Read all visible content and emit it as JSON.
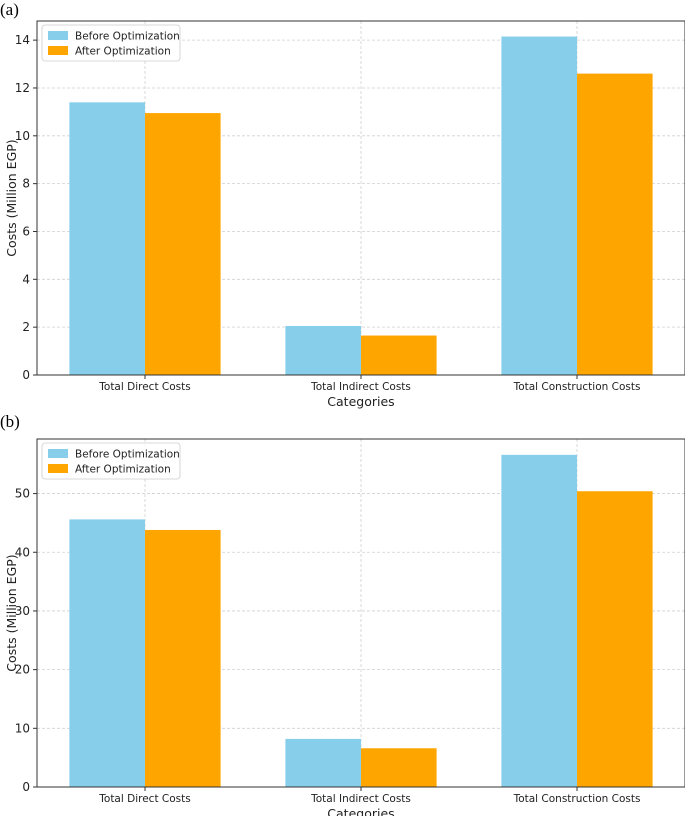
{
  "panels": [
    {
      "label": "(a)",
      "chart_data": {
        "type": "bar",
        "categories": [
          "Total Direct Costs",
          "Total Indirect Costs",
          "Total Construction Costs"
        ],
        "series": [
          {
            "name": "Before Optimization",
            "values": [
              11.4,
              2.05,
              14.15
            ],
            "color": "#87CEEB"
          },
          {
            "name": "After Optimization",
            "values": [
              10.95,
              1.65,
              12.6
            ],
            "color": "#FFA500"
          }
        ],
        "xlabel": "Categories",
        "ylabel": "Costs (Million EGP)",
        "ylim": [
          0,
          14.8
        ],
        "yticks": [
          0,
          2,
          4,
          6,
          8,
          10,
          12,
          14
        ],
        "grid": true,
        "legend": "top-left"
      }
    },
    {
      "label": "(b)",
      "chart_data": {
        "type": "bar",
        "categories": [
          "Total Direct Costs",
          "Total Indirect Costs",
          "Total Construction Costs"
        ],
        "series": [
          {
            "name": "Before Optimization",
            "values": [
              45.6,
              8.2,
              56.6
            ],
            "color": "#87CEEB"
          },
          {
            "name": "After Optimization",
            "values": [
              43.8,
              6.6,
              50.4
            ],
            "color": "#FFA500"
          }
        ],
        "xlabel": "Categories",
        "ylabel": "Costs (Million EGP)",
        "ylim": [
          0,
          59.3
        ],
        "yticks": [
          0,
          10,
          20,
          30,
          40,
          50
        ],
        "grid": true,
        "legend": "top-left"
      }
    }
  ]
}
